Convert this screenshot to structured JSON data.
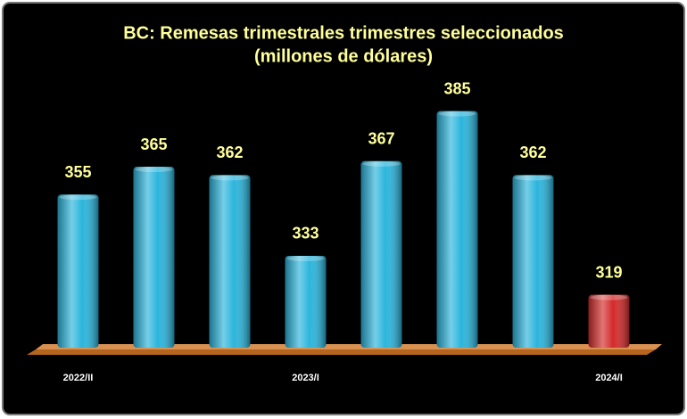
{
  "chart_data": {
    "type": "bar",
    "title": "BC: Remesas trimestrales trimestres seleccionados",
    "subtitle": "(millones de dólares)",
    "categories": [
      "2022/II",
      null,
      null,
      "2023/I",
      null,
      null,
      null,
      "2024/I"
    ],
    "values": [
      355,
      365,
      362,
      333,
      367,
      385,
      362,
      319
    ],
    "colors": [
      "#2bb5dc",
      "#2bb5dc",
      "#2bb5dc",
      "#2bb5dc",
      "#2bb5dc",
      "#2bb5dc",
      "#2bb5dc",
      "#d42a2a"
    ],
    "ylim": [
      300,
      390
    ]
  }
}
